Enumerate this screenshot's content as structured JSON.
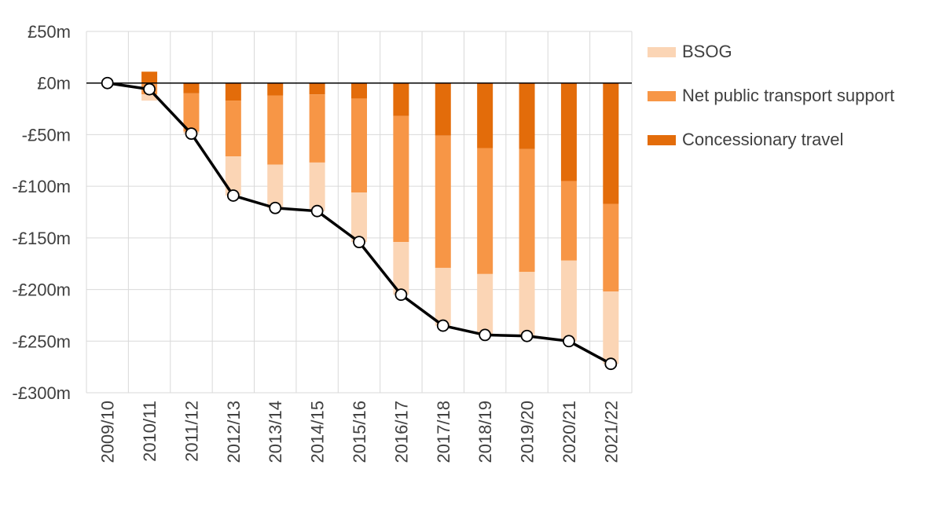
{
  "chart_data": {
    "type": "bar",
    "stacked": true,
    "categories": [
      "2009/10",
      "2010/11",
      "2011/12",
      "2012/13",
      "2013/14",
      "2014/15",
      "2015/16",
      "2016/17",
      "2017/18",
      "2018/19",
      "2019/20",
      "2020/21",
      "2021/22"
    ],
    "series": [
      {
        "name": "Concessionary travel",
        "color": "#E36C0A",
        "values": [
          0,
          11,
          -10,
          -17,
          -12,
          -11,
          -15,
          -32,
          -51,
          -63,
          -64,
          -95,
          -117
        ]
      },
      {
        "name": "Net public transport support",
        "color": "#F79646",
        "values": [
          0,
          -11,
          -37,
          -54,
          -67,
          -66,
          -91,
          -122,
          -128,
          -122,
          -119,
          -77,
          -85
        ]
      },
      {
        "name": "BSOG",
        "color": "#FBD5B5",
        "values": [
          0,
          -6,
          -2,
          -38,
          -42,
          -47,
          -48,
          -51,
          -56,
          -59,
          -62,
          -78,
          -70
        ]
      }
    ],
    "line": {
      "color": "#000000",
      "marker_fill": "#FFFFFF",
      "values": [
        0,
        -6,
        -49,
        -109,
        -121,
        -124,
        -154,
        -205,
        -235,
        -244,
        -245,
        -250,
        -272
      ]
    },
    "ylim": [
      -300,
      50
    ],
    "yticks": [
      50,
      0,
      -50,
      -100,
      -150,
      -200,
      -250,
      -300
    ],
    "ytick_labels": [
      "£50m",
      "£0m",
      "-£50m",
      "-£100m",
      "-£150m",
      "-£200m",
      "-£250m",
      "-£300m"
    ],
    "grid": true,
    "legend": "right",
    "legend_order": [
      "BSOG",
      "Net public transport support",
      "Concessionary travel"
    ]
  },
  "legend": {
    "items": [
      {
        "label": "BSOG",
        "color": "#FBD5B5"
      },
      {
        "label": "Net public transport support",
        "color": "#F79646"
      },
      {
        "label": "Concessionary travel",
        "color": "#E36C0A"
      }
    ]
  }
}
